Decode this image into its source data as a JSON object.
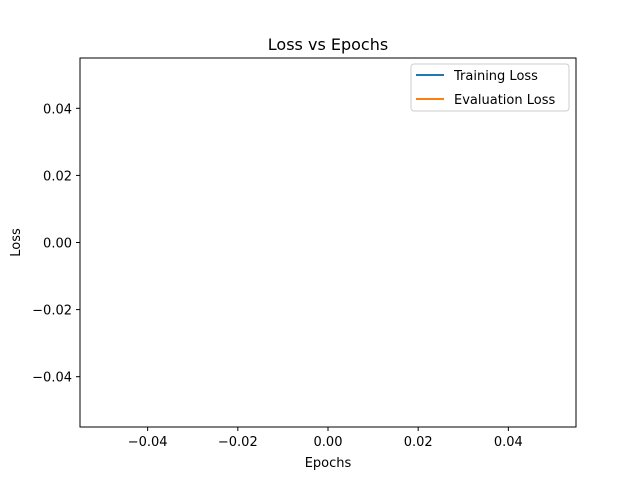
{
  "chart_data": {
    "type": "line",
    "title": "Loss vs Epochs",
    "xlabel": "Epochs",
    "ylabel": "Loss",
    "xlim": [
      -0.055,
      0.055
    ],
    "ylim": [
      -0.055,
      0.055
    ],
    "xticks": [
      -0.04,
      -0.02,
      0.0,
      0.02,
      0.04
    ],
    "xtick_labels": [
      "−0.04",
      "−0.02",
      "0.00",
      "0.02",
      "0.04"
    ],
    "yticks": [
      -0.04,
      -0.02,
      0.0,
      0.02,
      0.04
    ],
    "ytick_labels": [
      "−0.04",
      "−0.02",
      "0.00",
      "0.02",
      "0.04"
    ],
    "grid": false,
    "legend_position": "top-right",
    "series": [
      {
        "name": "Training Loss",
        "color": "#1f77b4",
        "x": [],
        "y": []
      },
      {
        "name": "Evaluation Loss",
        "color": "#ff7f0e",
        "x": [],
        "y": []
      }
    ]
  }
}
